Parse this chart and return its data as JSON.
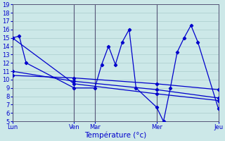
{
  "xlabel": "Température (°c)",
  "background_color": "#cce8e8",
  "grid_color": "#aacccc",
  "line_color": "#0000cc",
  "sep_color": "#555577",
  "ylim": [
    5,
    19
  ],
  "yticks": [
    5,
    6,
    7,
    8,
    9,
    10,
    11,
    12,
    13,
    14,
    15,
    16,
    17,
    18,
    19
  ],
  "xlim": [
    0,
    30
  ],
  "day_labels": [
    "Lun",
    "Ven",
    "Mar",
    "Mer",
    "Jeu"
  ],
  "day_x": [
    0,
    9,
    12,
    21,
    30
  ],
  "series1_x": [
    0,
    1,
    2,
    9,
    12,
    13,
    14,
    15,
    16,
    17,
    18,
    21,
    22,
    23,
    24,
    25,
    26,
    27,
    30
  ],
  "series1_y": [
    15,
    15.2,
    12,
    9,
    9.0,
    11.8,
    14.0,
    11.8,
    14.5,
    16.0,
    9.0,
    6.7,
    5.0,
    9.0,
    13.3,
    15.0,
    16.5,
    14.5,
    6.5
  ],
  "series2_x": [
    0,
    9,
    21,
    30
  ],
  "series2_y": [
    15.0,
    9.5,
    8.3,
    7.5
  ],
  "series3_x": [
    0,
    9,
    21,
    30
  ],
  "series3_y": [
    11.0,
    9.8,
    8.8,
    7.8
  ],
  "series4_x": [
    0,
    9,
    21,
    30
  ],
  "series4_y": [
    10.5,
    10.2,
    9.5,
    8.8
  ]
}
